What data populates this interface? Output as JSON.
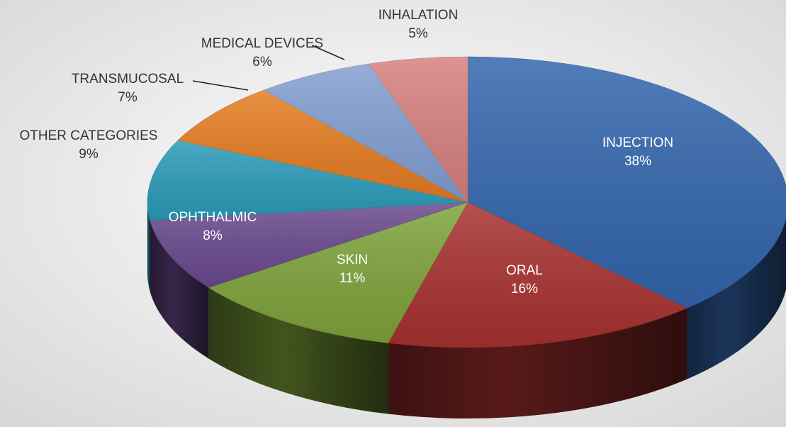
{
  "chart_data": {
    "type": "pie",
    "categories": [
      "INJECTION",
      "ORAL",
      "SKIN",
      "OPHTHALMIC",
      "OTHER CATEGORIES",
      "TRANSMUCOSAL",
      "MEDICAL DEVICES",
      "INHALATION"
    ],
    "values": [
      38,
      16,
      11,
      8,
      9,
      7,
      6,
      5
    ],
    "value_labels": [
      "38%",
      "16%",
      "11%",
      "8%",
      "9%",
      "7%",
      "6%",
      "5%"
    ],
    "colors": [
      "#3366ad",
      "#a83230",
      "#80a33b",
      "#6a4a8e",
      "#2b9cb9",
      "#e67d22",
      "#839fd2",
      "#d88181"
    ],
    "three_d": true
  }
}
